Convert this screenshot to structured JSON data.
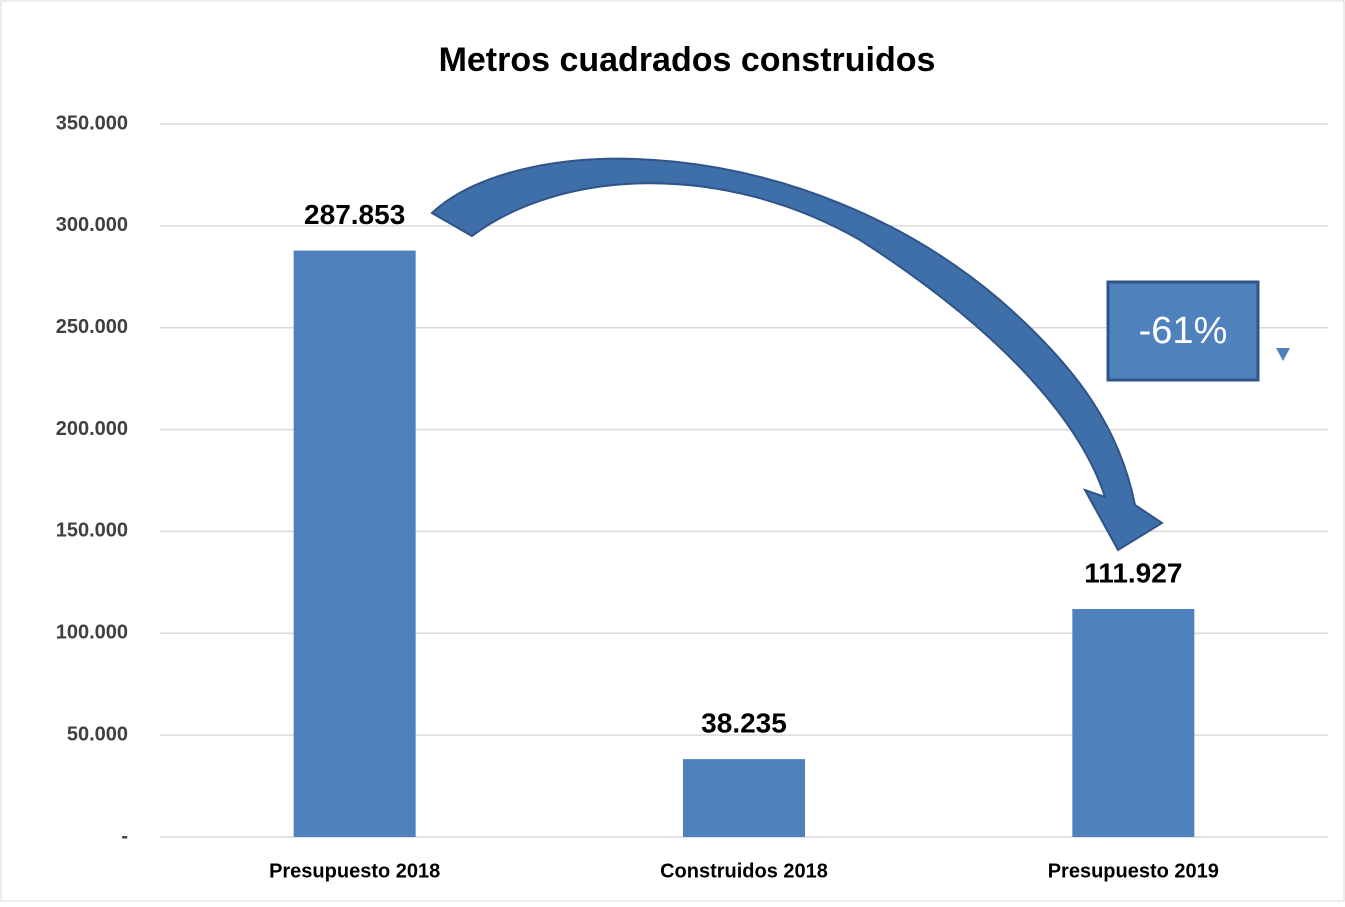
{
  "chart_data": {
    "type": "bar",
    "title": "Metros cuadrados construidos",
    "categories": [
      "Presupuesto 2018",
      "Construidos 2018",
      "Presupuesto 2019"
    ],
    "values": [
      287853,
      38235,
      111927
    ],
    "value_labels": [
      "287.853",
      "38.235",
      "111.927"
    ],
    "color": "#4f81bd",
    "ylim": [
      0,
      350000
    ],
    "yticks": [
      {
        "value": 0,
        "label": "-"
      },
      {
        "value": 50000,
        "label": "50.000"
      },
      {
        "value": 100000,
        "label": "100.000"
      },
      {
        "value": 150000,
        "label": "150.000"
      },
      {
        "value": 200000,
        "label": "200.000"
      },
      {
        "value": 250000,
        "label": "250.000"
      },
      {
        "value": 300000,
        "label": "300.000"
      },
      {
        "value": 350000,
        "label": "350.000"
      }
    ],
    "grid": true,
    "annotation": "-61%"
  }
}
